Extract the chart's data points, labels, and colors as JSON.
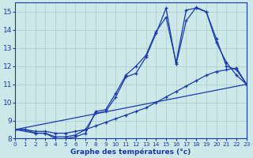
{
  "xlabel": "Graphe des températures (°c)",
  "xlim": [
    0,
    23
  ],
  "ylim": [
    8,
    15.5
  ],
  "xticks": [
    0,
    1,
    2,
    3,
    4,
    5,
    6,
    7,
    8,
    9,
    10,
    11,
    12,
    13,
    14,
    15,
    16,
    17,
    18,
    19,
    20,
    21,
    22,
    23
  ],
  "yticks": [
    8,
    9,
    10,
    11,
    12,
    13,
    14,
    15
  ],
  "bg_color": "#cce8e8",
  "line_color": "#1a3aaa",
  "grid_color": "#aacccc",
  "curve1_x": [
    0,
    1,
    2,
    3,
    4,
    5,
    6,
    7,
    8,
    9,
    10,
    11,
    12,
    13,
    14,
    15,
    16,
    17,
    18,
    19,
    20,
    21,
    22,
    23
  ],
  "curve1_y": [
    8.5,
    8.5,
    8.3,
    8.3,
    8.0,
    8.0,
    8.1,
    8.3,
    9.5,
    9.6,
    10.5,
    11.5,
    12.0,
    12.6,
    13.9,
    14.7,
    12.2,
    15.1,
    15.2,
    15.0,
    13.3,
    12.2,
    11.5,
    11.0
  ],
  "curve2_x": [
    0,
    2,
    3,
    4,
    5,
    6,
    7,
    8,
    9,
    10,
    11,
    12,
    13,
    14,
    15,
    16,
    17,
    18,
    19,
    20,
    21,
    22,
    23
  ],
  "curve2_y": [
    8.5,
    8.3,
    8.3,
    8.1,
    8.1,
    8.2,
    8.5,
    9.4,
    9.5,
    10.3,
    11.4,
    11.6,
    12.5,
    13.8,
    15.2,
    12.1,
    14.5,
    15.25,
    15.0,
    13.5,
    12.0,
    11.8,
    11.0
  ],
  "curve3_x": [
    0,
    1,
    2,
    3,
    4,
    5,
    6,
    7,
    8,
    9,
    10,
    11,
    12,
    13,
    14,
    15,
    16,
    17,
    18,
    19,
    20,
    21,
    22,
    23
  ],
  "curve3_y": [
    8.5,
    8.5,
    8.4,
    8.4,
    8.3,
    8.3,
    8.4,
    8.5,
    8.7,
    8.9,
    9.1,
    9.3,
    9.5,
    9.7,
    10.0,
    10.3,
    10.6,
    10.9,
    11.2,
    11.5,
    11.7,
    11.8,
    11.9,
    11.0
  ],
  "curve4_x": [
    0,
    23
  ],
  "curve4_y": [
    8.5,
    11.0
  ]
}
